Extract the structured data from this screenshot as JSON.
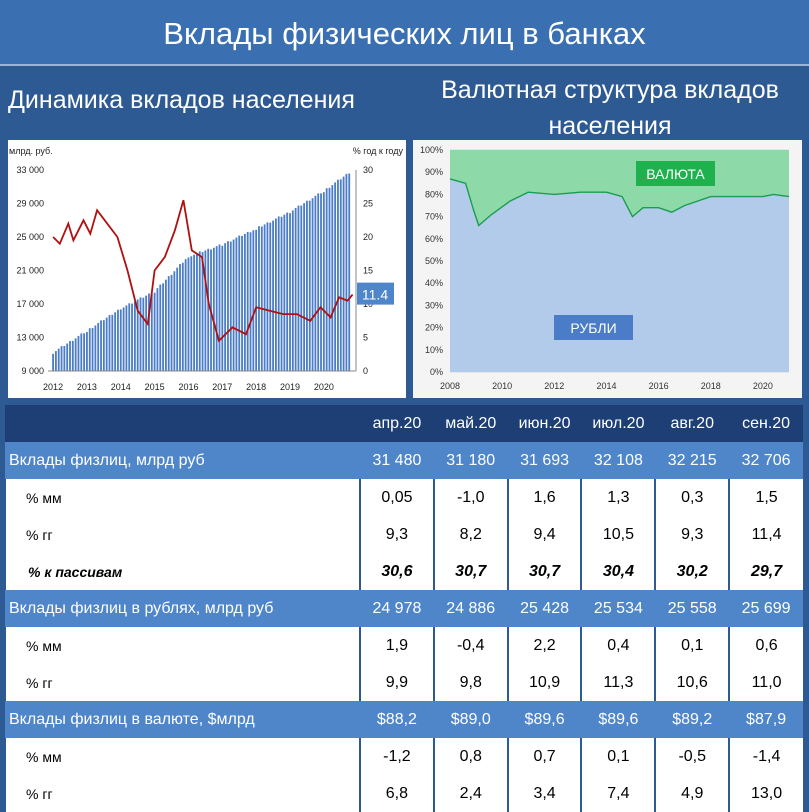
{
  "title": "Вклады физических лиц в банках",
  "left_subtitle": "Динамика вкладов населения",
  "right_subtitle": "Валютная структура вкладов населения",
  "chart_data": [
    {
      "type": "bar",
      "ylabel_left": "млрд. руб.",
      "ylabel_right": "% год к году",
      "yticks_left": [
        "9 000",
        "13 000",
        "17 000",
        "21 000",
        "25 000",
        "29 000",
        "33 000"
      ],
      "ylim_left": [
        9000,
        33000
      ],
      "yticks_right": [
        "0",
        "5",
        "10",
        "15",
        "20",
        "25",
        "30"
      ],
      "ylim_right": [
        0,
        30
      ],
      "xticks": [
        "2012",
        "2013",
        "2014",
        "2015",
        "2016",
        "2017",
        "2018",
        "2019",
        "2020"
      ],
      "bar_color": "#4a7cc7",
      "line_color": "#b01010",
      "last_value_label": "11.4",
      "deposits_yearly_points": [
        {
          "x": 2012.0,
          "y": 11200
        },
        {
          "x": 2013.0,
          "y": 13800
        },
        {
          "x": 2014.0,
          "y": 16500
        },
        {
          "x": 2015.0,
          "y": 18500
        },
        {
          "x": 2016.0,
          "y": 22700
        },
        {
          "x": 2017.0,
          "y": 24100
        },
        {
          "x": 2018.0,
          "y": 26000
        },
        {
          "x": 2019.0,
          "y": 28000
        },
        {
          "x": 2020.0,
          "y": 30500
        },
        {
          "x": 2020.75,
          "y": 32700
        }
      ],
      "growth_yoy_points": [
        {
          "x": 2012.0,
          "y": 20
        },
        {
          "x": 2012.2,
          "y": 19
        },
        {
          "x": 2012.45,
          "y": 22
        },
        {
          "x": 2012.6,
          "y": 19.5
        },
        {
          "x": 2012.9,
          "y": 22.5
        },
        {
          "x": 2013.1,
          "y": 20.5
        },
        {
          "x": 2013.3,
          "y": 24
        },
        {
          "x": 2013.6,
          "y": 22
        },
        {
          "x": 2013.9,
          "y": 20
        },
        {
          "x": 2014.2,
          "y": 15
        },
        {
          "x": 2014.5,
          "y": 9
        },
        {
          "x": 2014.8,
          "y": 7
        },
        {
          "x": 2015.0,
          "y": 15
        },
        {
          "x": 2015.3,
          "y": 17
        },
        {
          "x": 2015.6,
          "y": 21
        },
        {
          "x": 2015.85,
          "y": 25.5
        },
        {
          "x": 2016.1,
          "y": 18
        },
        {
          "x": 2016.4,
          "y": 17
        },
        {
          "x": 2016.6,
          "y": 10
        },
        {
          "x": 2016.9,
          "y": 4.5
        },
        {
          "x": 2017.3,
          "y": 6.5
        },
        {
          "x": 2017.7,
          "y": 5.5
        },
        {
          "x": 2018.0,
          "y": 9.5
        },
        {
          "x": 2018.4,
          "y": 9
        },
        {
          "x": 2018.8,
          "y": 8.5
        },
        {
          "x": 2019.2,
          "y": 8.5
        },
        {
          "x": 2019.6,
          "y": 7.5
        },
        {
          "x": 2019.9,
          "y": 9.5
        },
        {
          "x": 2020.2,
          "y": 8
        },
        {
          "x": 2020.45,
          "y": 11
        },
        {
          "x": 2020.7,
          "y": 10.5
        },
        {
          "x": 2020.85,
          "y": 11.4
        }
      ]
    },
    {
      "type": "area",
      "yticks": [
        "0%",
        "10%",
        "20%",
        "30%",
        "40%",
        "50%",
        "60%",
        "70%",
        "80%",
        "90%",
        "100%"
      ],
      "ylim": [
        0,
        100
      ],
      "xticks": [
        "2008",
        "2010",
        "2012",
        "2014",
        "2016",
        "2018",
        "2020"
      ],
      "xlim": [
        2008,
        2021
      ],
      "rub_share_points": [
        {
          "x": 2008.0,
          "y": 87
        },
        {
          "x": 2008.6,
          "y": 85
        },
        {
          "x": 2008.9,
          "y": 73
        },
        {
          "x": 2009.1,
          "y": 66
        },
        {
          "x": 2009.6,
          "y": 71
        },
        {
          "x": 2010.3,
          "y": 77
        },
        {
          "x": 2011.0,
          "y": 81
        },
        {
          "x": 2012.0,
          "y": 80
        },
        {
          "x": 2013.0,
          "y": 81
        },
        {
          "x": 2014.0,
          "y": 81
        },
        {
          "x": 2014.6,
          "y": 79
        },
        {
          "x": 2015.0,
          "y": 70
        },
        {
          "x": 2015.4,
          "y": 74
        },
        {
          "x": 2016.0,
          "y": 74
        },
        {
          "x": 2016.5,
          "y": 72
        },
        {
          "x": 2017.0,
          "y": 75
        },
        {
          "x": 2018.0,
          "y": 79
        },
        {
          "x": 2019.0,
          "y": 79
        },
        {
          "x": 2020.0,
          "y": 79
        },
        {
          "x": 2020.4,
          "y": 80
        },
        {
          "x": 2021.0,
          "y": 79
        }
      ],
      "rub_label": "РУБЛИ",
      "fx_label": "ВАЛЮТА",
      "rub_color": "#b3cbea",
      "fx_color": "#8ddaa8"
    }
  ],
  "table": {
    "columns": [
      "апр.20",
      "май.20",
      "июн.20",
      "июл.20",
      "авг.20",
      "сен.20"
    ],
    "rows": [
      {
        "kind": "main",
        "label": "Вклады физлиц, млрд руб",
        "values": [
          "31 480",
          "31 180",
          "31 693",
          "32 108",
          "32 215",
          "32 706"
        ]
      },
      {
        "kind": "sub",
        "label": "% мм",
        "values": [
          "0,05",
          "-1,0",
          "1,6",
          "1,3",
          "0,3",
          "1,5"
        ]
      },
      {
        "kind": "sub",
        "label": "% гг",
        "values": [
          "9,3",
          "8,2",
          "9,4",
          "10,5",
          "9,3",
          "11,4"
        ]
      },
      {
        "kind": "ital",
        "label": "% к пассивам",
        "values": [
          "30,6",
          "30,7",
          "30,7",
          "30,4",
          "30,2",
          "29,7"
        ]
      },
      {
        "kind": "main",
        "label": "Вклады физлиц в рублях, млрд руб",
        "values": [
          "24 978",
          "24 886",
          "25 428",
          "25 534",
          "25 558",
          "25 699"
        ]
      },
      {
        "kind": "sub",
        "label": "% мм",
        "values": [
          "1,9",
          "-0,4",
          "2,2",
          "0,4",
          "0,1",
          "0,6"
        ]
      },
      {
        "kind": "sub",
        "label": "% гг",
        "values": [
          "9,9",
          "9,8",
          "10,9",
          "11,3",
          "10,6",
          "11,0"
        ]
      },
      {
        "kind": "main",
        "label": "Вклады физлиц в валюте, $млрд",
        "values": [
          "$88,2",
          "$89,0",
          "$89,6",
          "$89,6",
          "$89,2",
          "$87,9"
        ]
      },
      {
        "kind": "sub",
        "label": "% мм",
        "values": [
          "-1,2",
          "0,8",
          "0,7",
          "0,1",
          "-0,5",
          "-1,4"
        ]
      },
      {
        "kind": "sub",
        "label": "% гг",
        "values": [
          "6,8",
          "2,4",
          "3,4",
          "7,4",
          "4,9",
          "13,0"
        ]
      }
    ]
  }
}
